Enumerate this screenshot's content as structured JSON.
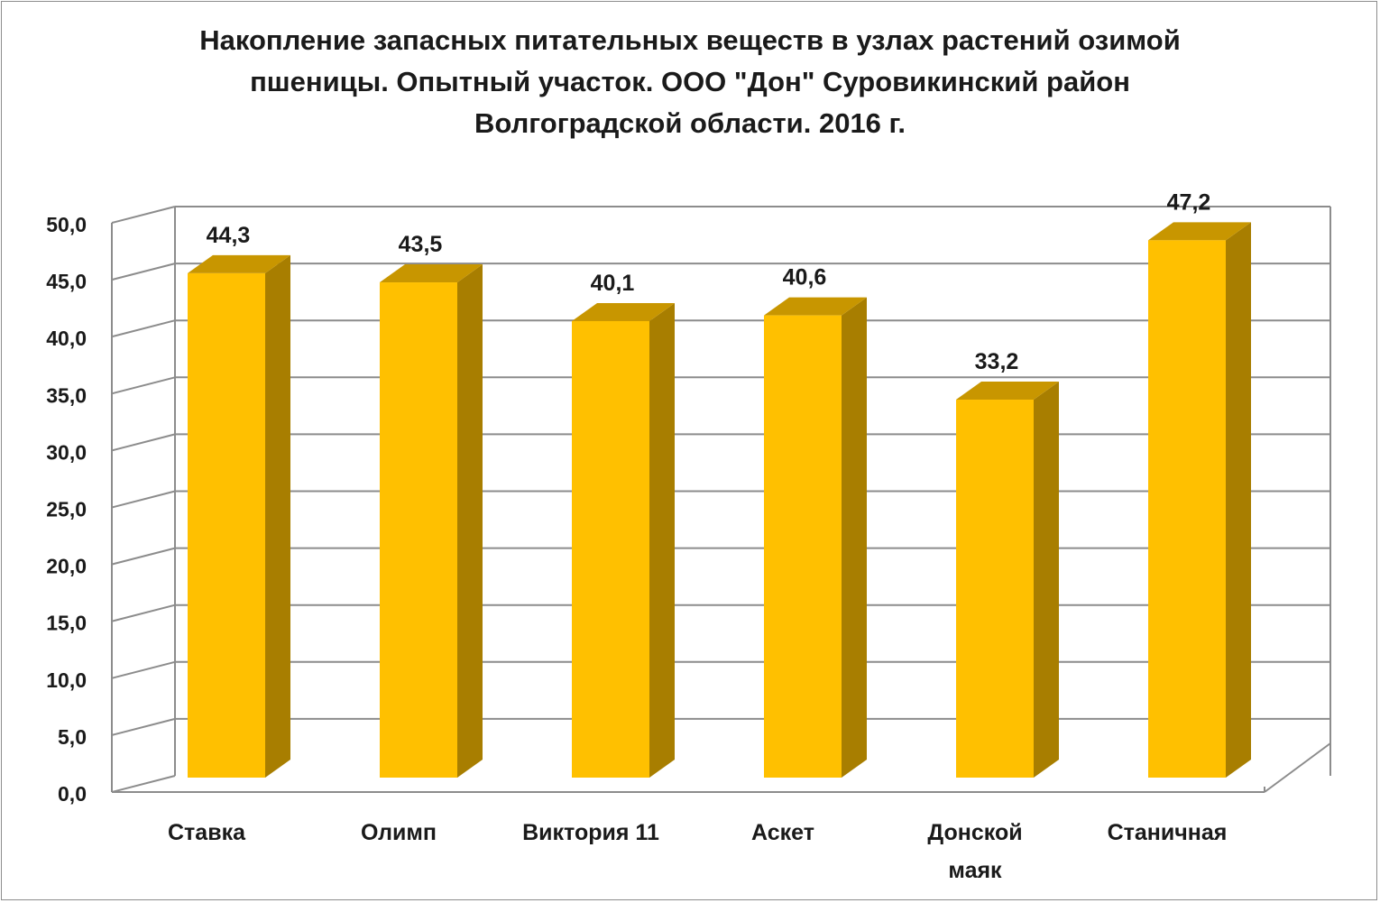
{
  "chart_data": {
    "type": "bar",
    "title_lines": [
      "Накопление запасных питательных веществ в узлах растений озимой",
      "пшеницы. Опытный участок. ООО \"Дон\" Суровикинский район",
      "Волгоградской области. 2016 г."
    ],
    "categories": [
      [
        "Ставка"
      ],
      [
        "Олимп"
      ],
      [
        "Виктория 11"
      ],
      [
        "Аскет"
      ],
      [
        "Донской",
        "маяк"
      ],
      [
        "Станичная"
      ]
    ],
    "values": [
      44.3,
      43.5,
      40.1,
      40.6,
      33.2,
      47.2
    ],
    "value_labels": [
      "44,3",
      "43,5",
      "40,1",
      "40,6",
      "33,2",
      "47,2"
    ],
    "ylim": [
      0,
      50
    ],
    "yticks": [
      "0,0",
      "5,0",
      "10,0",
      "15,0",
      "20,0",
      "25,0",
      "30,0",
      "35,0",
      "40,0",
      "45,0",
      "50,0"
    ],
    "grid": true,
    "style_3d": true,
    "colors": {
      "bar_front": "#FFC000",
      "bar_side": "#A87E00",
      "bar_top": "#C89600",
      "grid": "#8c8c8c"
    }
  }
}
